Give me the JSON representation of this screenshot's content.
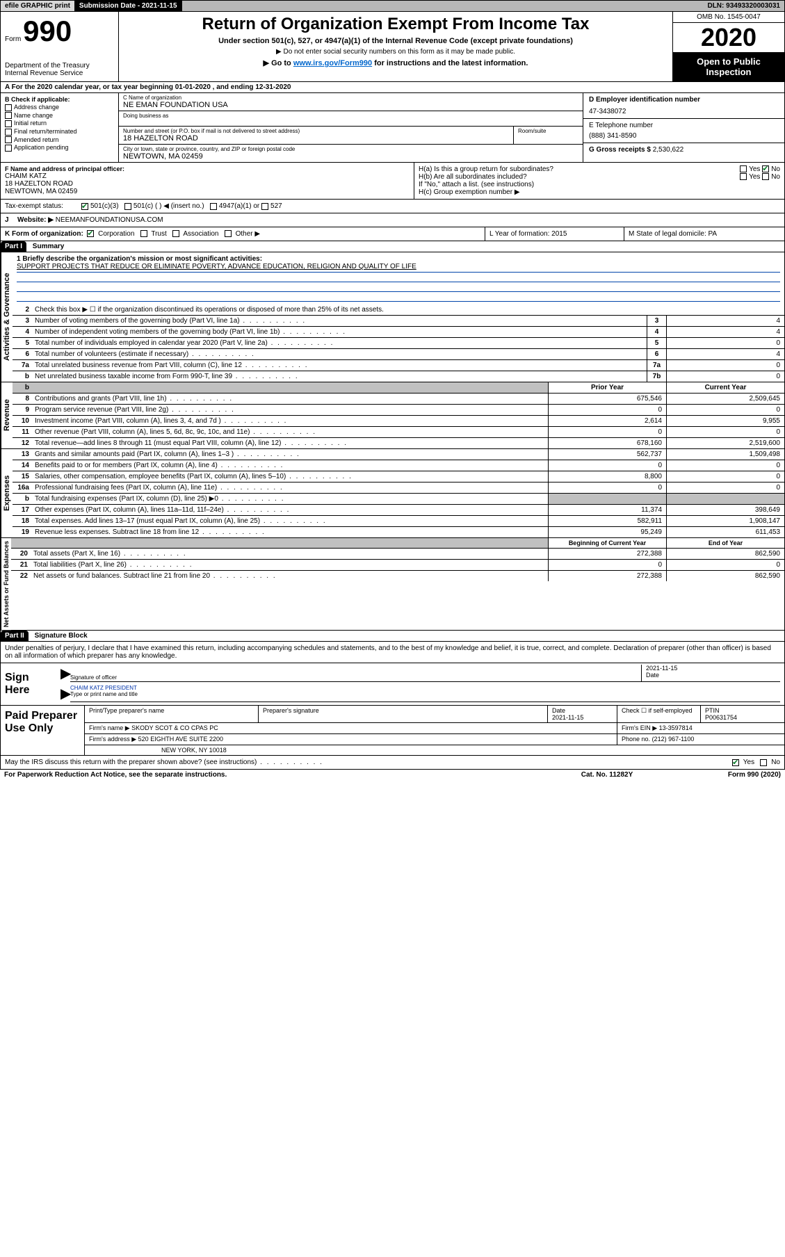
{
  "topbar": {
    "efile": "efile GRAPHIC print",
    "subdate_label": "Submission Date - 2021-11-15",
    "dln": "DLN: 93493320003031"
  },
  "header": {
    "form_label": "Form",
    "form_number": "990",
    "dept1": "Department of the Treasury",
    "dept2": "Internal Revenue Service",
    "title": "Return of Organization Exempt From Income Tax",
    "subtitle": "Under section 501(c), 527, or 4947(a)(1) of the Internal Revenue Code (except private foundations)",
    "note1": "▶ Do not enter social security numbers on this form as it may be made public.",
    "note2_pre": "▶ Go to ",
    "note2_link": "www.irs.gov/Form990",
    "note2_post": " for instructions and the latest information.",
    "omb": "OMB No. 1545-0047",
    "year": "2020",
    "open_public1": "Open to Public",
    "open_public2": "Inspection"
  },
  "period": {
    "text": "A For the 2020 calendar year, or tax year beginning 01-01-2020    , and ending 12-31-2020"
  },
  "section_b": {
    "label": "B Check if applicable:",
    "items": [
      "Address change",
      "Name change",
      "Initial return",
      "Final return/terminated",
      "Amended return",
      "Application pending"
    ]
  },
  "section_c": {
    "name_label": "C Name of organization",
    "name": "NE EMAN FOUNDATION USA",
    "dba_label": "Doing business as",
    "dba": "",
    "addr_label": "Number and street (or P.O. box if mail is not delivered to street address)",
    "room_label": "Room/suite",
    "addr": "18 HAZELTON ROAD",
    "city_label": "City or town, state or province, country, and ZIP or foreign postal code",
    "city": "NEWTOWN, MA  02459"
  },
  "section_d": {
    "label": "D Employer identification number",
    "val": "47-3438072"
  },
  "section_e": {
    "label": "E Telephone number",
    "val": "(888) 341-8590"
  },
  "section_g": {
    "label": "G Gross receipts $",
    "val": "2,530,622"
  },
  "section_f": {
    "label": "F  Name and address of principal officer:",
    "name": "CHAIM KATZ",
    "addr": "18 HAZELTON ROAD",
    "city": "NEWTOWN, MA  02459"
  },
  "section_h": {
    "a": "H(a)  Is this a group return for subordinates?",
    "b": "H(b)  Are all subordinates included?",
    "c_note": "If \"No,\" attach a list. (see instructions)",
    "c": "H(c)  Group exemption number ▶",
    "yes": "Yes",
    "no": "No"
  },
  "tax_status": {
    "label": "Tax-exempt status:",
    "c3": "501(c)(3)",
    "c": "501(c) (  ) ◀ (insert no.)",
    "a1": "4947(a)(1) or",
    "s527": "527"
  },
  "website": {
    "label_j": "J",
    "label": "Website: ▶",
    "val": "NEEMANFOUNDATIONUSA.COM"
  },
  "org_form": {
    "k": "K Form of organization:",
    "corp": "Corporation",
    "trust": "Trust",
    "assoc": "Association",
    "other": "Other ▶",
    "l": "L Year of formation: 2015",
    "m": "M State of legal domicile: PA"
  },
  "part1": {
    "header": "Part I",
    "title": "Summary",
    "line1_label": "1  Briefly describe the organization's mission or most significant activities:",
    "line1_text": "SUPPORT PROJECTS THAT REDUCE OR ELIMINATE POVERTY, ADVANCE EDUCATION, RELIGION AND QUALITY OF LIFE",
    "line2": "Check this box ▶ ☐  if the organization discontinued its operations or disposed of more than 25% of its net assets.",
    "gov_label": "Activities & Governance",
    "rows_gov": [
      {
        "n": "3",
        "t": "Number of voting members of the governing body (Part VI, line 1a)",
        "box": "3",
        "v": "4"
      },
      {
        "n": "4",
        "t": "Number of independent voting members of the governing body (Part VI, line 1b)",
        "box": "4",
        "v": "4"
      },
      {
        "n": "5",
        "t": "Total number of individuals employed in calendar year 2020 (Part V, line 2a)",
        "box": "5",
        "v": "0"
      },
      {
        "n": "6",
        "t": "Total number of volunteers (estimate if necessary)",
        "box": "6",
        "v": "4"
      },
      {
        "n": "7a",
        "t": "Total unrelated business revenue from Part VIII, column (C), line 12",
        "box": "7a",
        "v": "0"
      },
      {
        "n": "b",
        "t": "Net unrelated business taxable income from Form 990-T, line 39",
        "box": "7b",
        "v": "0"
      }
    ],
    "rev_label": "Revenue",
    "col_prior": "Prior Year",
    "col_curr": "Current Year",
    "rows_rev": [
      {
        "n": "8",
        "t": "Contributions and grants (Part VIII, line 1h)",
        "p": "675,546",
        "c": "2,509,645"
      },
      {
        "n": "9",
        "t": "Program service revenue (Part VIII, line 2g)",
        "p": "0",
        "c": "0"
      },
      {
        "n": "10",
        "t": "Investment income (Part VIII, column (A), lines 3, 4, and 7d )",
        "p": "2,614",
        "c": "9,955"
      },
      {
        "n": "11",
        "t": "Other revenue (Part VIII, column (A), lines 5, 6d, 8c, 9c, 10c, and 11e)",
        "p": "0",
        "c": "0"
      },
      {
        "n": "12",
        "t": "Total revenue—add lines 8 through 11 (must equal Part VIII, column (A), line 12)",
        "p": "678,160",
        "c": "2,519,600"
      }
    ],
    "exp_label": "Expenses",
    "rows_exp": [
      {
        "n": "13",
        "t": "Grants and similar amounts paid (Part IX, column (A), lines 1–3 )",
        "p": "562,737",
        "c": "1,509,498"
      },
      {
        "n": "14",
        "t": "Benefits paid to or for members (Part IX, column (A), line 4)",
        "p": "0",
        "c": "0"
      },
      {
        "n": "15",
        "t": "Salaries, other compensation, employee benefits (Part IX, column (A), lines 5–10)",
        "p": "8,800",
        "c": "0"
      },
      {
        "n": "16a",
        "t": "Professional fundraising fees (Part IX, column (A), line 11e)",
        "p": "0",
        "c": "0"
      },
      {
        "n": "b",
        "t": "Total fundraising expenses (Part IX, column (D), line 25) ▶0",
        "p": "",
        "c": "",
        "shaded": true
      },
      {
        "n": "17",
        "t": "Other expenses (Part IX, column (A), lines 11a–11d, 11f–24e)",
        "p": "11,374",
        "c": "398,649"
      },
      {
        "n": "18",
        "t": "Total expenses. Add lines 13–17 (must equal Part IX, column (A), line 25)",
        "p": "582,911",
        "c": "1,908,147"
      },
      {
        "n": "19",
        "t": "Revenue less expenses. Subtract line 18 from line 12",
        "p": "95,249",
        "c": "611,453"
      }
    ],
    "net_label": "Net Assets or Fund Balances",
    "col_beg": "Beginning of Current Year",
    "col_end": "End of Year",
    "rows_net": [
      {
        "n": "20",
        "t": "Total assets (Part X, line 16)",
        "p": "272,388",
        "c": "862,590"
      },
      {
        "n": "21",
        "t": "Total liabilities (Part X, line 26)",
        "p": "0",
        "c": "0"
      },
      {
        "n": "22",
        "t": "Net assets or fund balances. Subtract line 21 from line 20",
        "p": "272,388",
        "c": "862,590"
      }
    ]
  },
  "part2": {
    "header": "Part II",
    "title": "Signature Block",
    "note": "Under penalties of perjury, I declare that I have examined this return, including accompanying schedules and statements, and to the best of my knowledge and belief, it is true, correct, and complete. Declaration of preparer (other than officer) is based on all information of which preparer has any knowledge."
  },
  "sign": {
    "here": "Sign Here",
    "sig_label": "Signature of officer",
    "date_label": "Date",
    "date": "2021-11-15",
    "name": "CHAIM KATZ  PRESIDENT",
    "name_label": "Type or print name and title"
  },
  "prep": {
    "label": "Paid Preparer Use Only",
    "h1": "Print/Type preparer's name",
    "h2": "Preparer's signature",
    "h3_label": "Date",
    "h3": "2021-11-15",
    "h4": "Check ☐ if self-employed",
    "h5_label": "PTIN",
    "h5": "P00631754",
    "firm_name_label": "Firm's name    ▶",
    "firm_name": "SKODY SCOT & CO CPAS PC",
    "firm_ein_label": "Firm's EIN ▶",
    "firm_ein": "13-3597814",
    "firm_addr_label": "Firm's address ▶",
    "firm_addr1": "520 EIGHTH AVE SUITE 2200",
    "firm_addr2": "NEW YORK, NY  10018",
    "phone_label": "Phone no.",
    "phone": "(212) 967-1100"
  },
  "discuss": {
    "text": "May the IRS discuss this return with the preparer shown above? (see instructions)",
    "yes": "Yes",
    "no": "No"
  },
  "footer": {
    "paperwork": "For Paperwork Reduction Act Notice, see the separate instructions.",
    "cat": "Cat. No. 11282Y",
    "form": "Form 990 (2020)"
  }
}
